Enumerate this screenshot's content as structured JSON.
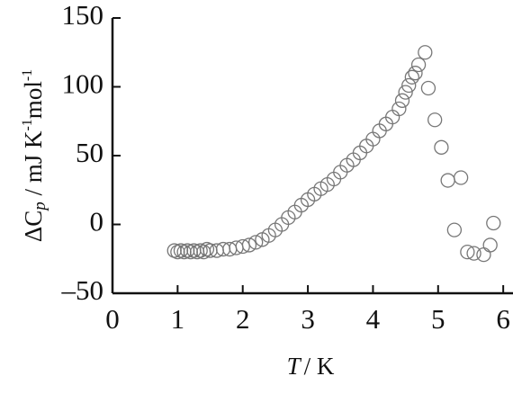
{
  "chart_data": {
    "type": "scatter",
    "ylabel": [
      "ΔC",
      "p",
      " / mJ K",
      "-1",
      "mol",
      "-1"
    ],
    "xlabel": [
      "T",
      "/ K"
    ],
    "xlim": [
      0,
      6.15
    ],
    "ylim": [
      -50,
      150
    ],
    "xticks": [
      0,
      1,
      2,
      3,
      4,
      5,
      6
    ],
    "yticks": [
      {
        "value": -50,
        "label": "–50"
      },
      0,
      50,
      100,
      150
    ],
    "color": "#777777",
    "x": [
      0.95,
      1.0,
      1.05,
      1.1,
      1.15,
      1.2,
      1.25,
      1.3,
      1.35,
      1.4,
      1.45,
      1.5,
      1.6,
      1.7,
      1.8,
      1.9,
      2.0,
      2.1,
      2.2,
      2.3,
      2.4,
      2.5,
      2.6,
      2.7,
      2.8,
      2.9,
      3.0,
      3.1,
      3.2,
      3.3,
      3.4,
      3.5,
      3.6,
      3.7,
      3.8,
      3.9,
      4.0,
      4.1,
      4.2,
      4.3,
      4.4,
      4.45,
      4.5,
      4.55,
      4.6,
      4.65,
      4.7,
      4.8,
      4.85,
      4.95,
      5.05,
      5.15,
      5.25,
      5.35,
      5.45,
      5.55,
      5.7,
      5.8,
      5.85
    ],
    "values": [
      -19,
      -20,
      -19,
      -20,
      -19,
      -20,
      -19,
      -20,
      -19,
      -20,
      -18,
      -19,
      -19,
      -18,
      -18,
      -17,
      -16,
      -15,
      -13,
      -11,
      -8,
      -4,
      0,
      5,
      9,
      14,
      18,
      22,
      26,
      29,
      33,
      38,
      43,
      47,
      52,
      57,
      62,
      68,
      73,
      78,
      84,
      90,
      96,
      101,
      107,
      110,
      116,
      125,
      99,
      76,
      56,
      32,
      -4,
      34,
      -20,
      -21,
      -22,
      -15,
      1
    ]
  }
}
